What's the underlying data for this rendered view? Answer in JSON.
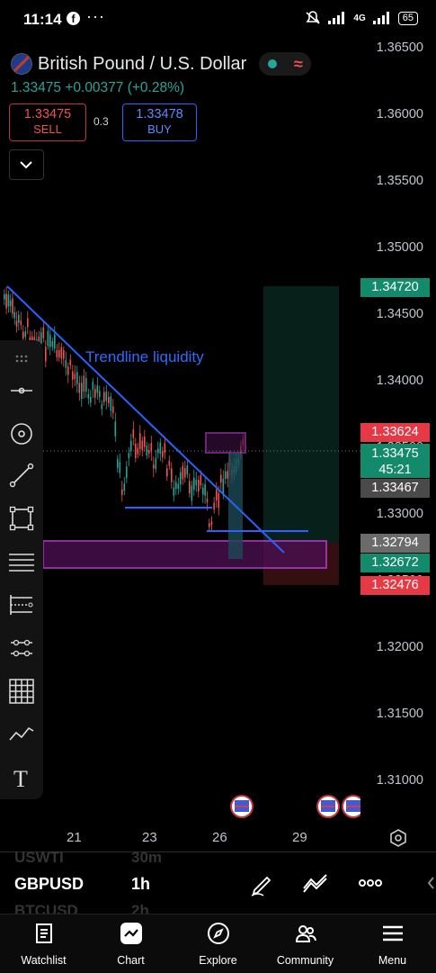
{
  "status_bar": {
    "time": "11:14",
    "network": "4G",
    "battery": "65"
  },
  "header": {
    "title": "British Pound / U.S. Dollar",
    "price_change": "1.33475 +0.00377 (+0.28%)",
    "sell": {
      "price": "1.33475",
      "label": "SELL"
    },
    "spread": "0.3",
    "buy": {
      "price": "1.33478",
      "label": "BUY"
    }
  },
  "price_axis": [
    "1.36500",
    "1.36000",
    "1.35500",
    "1.35000",
    "1.34500",
    "1.34000",
    "1.33500",
    "1.33000",
    "1.32500",
    "1.32000",
    "1.31500",
    "1.31000"
  ],
  "price_tags": {
    "target": "1.34720",
    "high": "1.33624",
    "last_price": "1.33475",
    "countdown": "45:21",
    "level_1": "1.33467",
    "level_2": "1.32794",
    "level_3": "1.32672",
    "stop": "1.32476"
  },
  "annotation": "Trendline liquidity",
  "date_axis": [
    "21",
    "23",
    "26",
    "29"
  ],
  "bottom_rows": {
    "prev_symbol": "USWTI",
    "prev_interval": "30m",
    "symbol": "GBPUSD",
    "interval": "1h",
    "next_symbol": "BTCUSD",
    "next_interval": "2h"
  },
  "nav": [
    "Watchlist",
    "Chart",
    "Explore",
    "Community",
    "Menu"
  ],
  "colors": {
    "up": "#26a69a",
    "down": "#ef5350",
    "trendline": "#2962ff",
    "zone": "#9c27b0"
  }
}
